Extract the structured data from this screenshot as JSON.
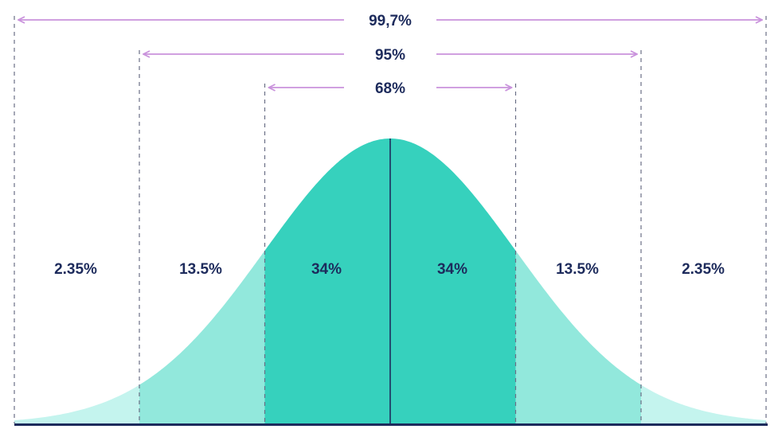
{
  "colors": {
    "band_1sd": "#36d1bd",
    "band_2sd": "#92e8dc",
    "band_3sd": "#c4f4ee",
    "arrow": "#c992dc",
    "dashed_line": "#6a6f86",
    "mean_line": "#1d2b5c",
    "axis": "#1d2b5c",
    "label": "#1d2b5c"
  },
  "ranges": [
    {
      "label": "99,7%",
      "from_sd": -3,
      "to_sd": 3
    },
    {
      "label": "95%",
      "from_sd": -2,
      "to_sd": 2
    },
    {
      "label": "68%",
      "from_sd": -1,
      "to_sd": 1
    }
  ],
  "segments": [
    {
      "label": "2.35%",
      "from_sd": -4,
      "to_sd": -2,
      "band": "band_3sd"
    },
    {
      "label": "13.5%",
      "from_sd": -2,
      "to_sd": -1,
      "band": "band_2sd"
    },
    {
      "label": "34%",
      "from_sd": -1,
      "to_sd": 0,
      "band": "band_1sd"
    },
    {
      "label": "34%",
      "from_sd": 0,
      "to_sd": 1,
      "band": "band_1sd"
    },
    {
      "label": "13.5%",
      "from_sd": 1,
      "to_sd": 2,
      "band": "band_2sd"
    },
    {
      "label": "2.35%",
      "from_sd": 2,
      "to_sd": 4,
      "band": "band_3sd"
    }
  ]
}
